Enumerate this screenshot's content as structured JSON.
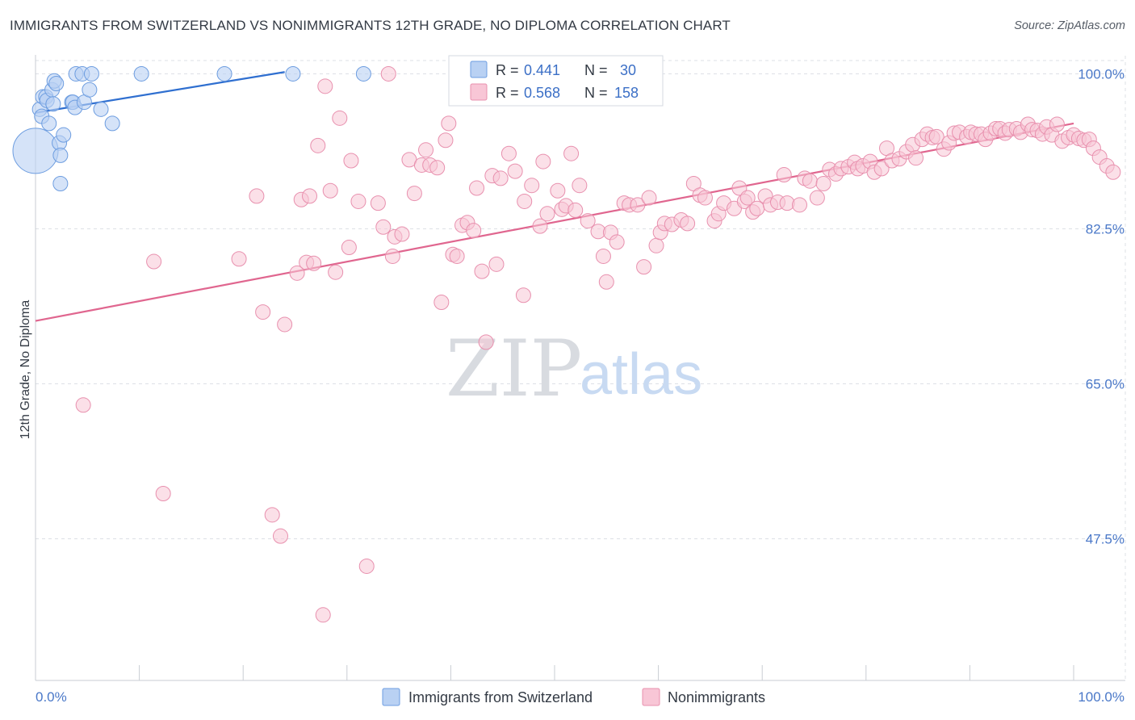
{
  "title": "IMMIGRANTS FROM SWITZERLAND VS NONIMMIGRANTS 12TH GRADE, NO DIPLOMA CORRELATION CHART",
  "source": "Source: ZipAtlas.com",
  "watermark": {
    "zip": "ZIP",
    "atlas": "atlas"
  },
  "colors": {
    "blue_fill": "#b9d1f3",
    "blue_stroke": "#6d9de0",
    "blue_line": "#2f6fd0",
    "pink_fill": "#f8c6d6",
    "pink_stroke": "#e890ae",
    "pink_line": "#e0668f",
    "grid": "#dde0e6",
    "tick_text": "#4a78c8"
  },
  "legend": {
    "rows": [
      {
        "r_label": "R =",
        "r_value": "0.441",
        "n_label": "N =",
        "n_value": "30",
        "series": "blue"
      },
      {
        "r_label": "R =",
        "r_value": "0.568",
        "n_label": "N =",
        "n_value": "158",
        "series": "pink"
      }
    ]
  },
  "chart_data": {
    "type": "scatter",
    "title": "IMMIGRANTS FROM SWITZERLAND VS NONIMMIGRANTS 12TH GRADE, NO DIPLOMA CORRELATION CHART",
    "xlabel": "",
    "ylabel": "12th Grade, No Diploma",
    "xlim": [
      0,
      100
    ],
    "ylim": [
      31.5,
      101.5
    ],
    "x_tick_labels": [
      "0.0%",
      "100.0%"
    ],
    "y_ticks": [
      47.5,
      65.0,
      82.5,
      100.0
    ],
    "y_tick_labels": [
      "47.5%",
      "65.0%",
      "82.5%",
      "100.0%"
    ],
    "grid": true,
    "legend_position": "bottom",
    "series": [
      {
        "name": "Immigrants from Switzerland",
        "color": "blue",
        "trend": {
          "x": [
            0,
            24
          ],
          "y": [
            95.6,
            100.2
          ]
        },
        "points": [
          [
            0.0,
            91.3,
            28
          ],
          [
            0.4,
            96.0,
            9
          ],
          [
            0.6,
            95.2,
            9
          ],
          [
            0.7,
            97.4,
            9
          ],
          [
            1.0,
            97.4,
            9
          ],
          [
            1.1,
            97.0,
            9
          ],
          [
            1.3,
            94.4,
            9
          ],
          [
            1.6,
            98.2,
            9
          ],
          [
            1.7,
            96.6,
            9
          ],
          [
            1.8,
            99.2,
            9
          ],
          [
            2.0,
            98.9,
            9
          ],
          [
            2.3,
            92.2,
            9
          ],
          [
            2.4,
            90.8,
            9
          ],
          [
            2.4,
            87.6,
            9
          ],
          [
            2.7,
            93.1,
            9
          ],
          [
            3.5,
            96.8,
            9
          ],
          [
            3.6,
            96.8,
            9
          ],
          [
            3.8,
            96.2,
            9
          ],
          [
            3.9,
            100.0,
            9
          ],
          [
            4.5,
            100.0,
            9
          ],
          [
            4.7,
            96.8,
            9
          ],
          [
            5.2,
            98.2,
            9
          ],
          [
            5.4,
            100.0,
            9
          ],
          [
            6.3,
            96.0,
            9
          ],
          [
            7.4,
            94.4,
            9
          ],
          [
            10.2,
            100.0,
            9
          ],
          [
            18.2,
            100.0,
            9
          ],
          [
            24.8,
            100.0,
            9
          ],
          [
            31.6,
            100.0,
            9
          ]
        ]
      },
      {
        "name": "Nonimmigrants",
        "color": "pink",
        "trend": {
          "x": [
            0,
            100
          ],
          "y": [
            72.1,
            94.4
          ]
        },
        "points": [
          [
            4.6,
            62.6
          ],
          [
            11.4,
            78.8
          ],
          [
            12.3,
            52.6
          ],
          [
            19.6,
            79.1
          ],
          [
            21.3,
            86.2
          ],
          [
            21.9,
            73.1
          ],
          [
            22.8,
            50.2
          ],
          [
            23.6,
            47.8
          ],
          [
            24.0,
            71.7
          ],
          [
            25.2,
            77.5
          ],
          [
            25.6,
            85.8
          ],
          [
            26.1,
            78.7
          ],
          [
            26.4,
            86.2
          ],
          [
            26.8,
            78.6
          ],
          [
            27.2,
            91.9
          ],
          [
            27.7,
            38.9
          ],
          [
            27.9,
            98.6
          ],
          [
            28.4,
            86.8
          ],
          [
            28.9,
            77.6
          ],
          [
            29.3,
            95.0
          ],
          [
            30.2,
            80.4
          ],
          [
            30.4,
            90.2
          ],
          [
            31.1,
            85.6
          ],
          [
            31.9,
            44.4
          ],
          [
            33.0,
            85.4
          ],
          [
            33.5,
            82.7
          ],
          [
            34.0,
            100.0
          ],
          [
            34.4,
            79.4
          ],
          [
            34.6,
            81.6
          ],
          [
            35.3,
            81.9
          ],
          [
            36.0,
            90.3
          ],
          [
            36.5,
            86.5
          ],
          [
            37.2,
            89.7
          ],
          [
            37.6,
            91.4
          ],
          [
            38.0,
            89.7
          ],
          [
            38.7,
            89.4
          ],
          [
            39.1,
            74.2
          ],
          [
            39.5,
            92.5
          ],
          [
            39.8,
            94.4
          ],
          [
            40.2,
            79.6
          ],
          [
            40.6,
            79.4
          ],
          [
            41.1,
            82.9
          ],
          [
            41.6,
            83.2
          ],
          [
            42.2,
            82.3
          ],
          [
            42.5,
            87.1
          ],
          [
            43.0,
            77.7
          ],
          [
            43.4,
            69.7
          ],
          [
            44.0,
            88.5
          ],
          [
            44.4,
            78.5
          ],
          [
            44.8,
            88.2
          ],
          [
            45.6,
            91.0
          ],
          [
            46.2,
            89.0
          ],
          [
            47.0,
            75.0
          ],
          [
            47.1,
            85.6
          ],
          [
            47.8,
            87.4
          ],
          [
            48.6,
            82.8
          ],
          [
            48.9,
            90.1
          ],
          [
            49.3,
            84.2
          ],
          [
            50.3,
            86.8
          ],
          [
            50.7,
            84.7
          ],
          [
            51.1,
            85.1
          ],
          [
            51.6,
            91.0
          ],
          [
            52.0,
            84.6
          ],
          [
            52.4,
            87.4
          ],
          [
            53.2,
            83.4
          ],
          [
            54.2,
            82.2
          ],
          [
            54.7,
            79.4
          ],
          [
            55.0,
            76.5
          ],
          [
            55.4,
            82.1
          ],
          [
            56.0,
            81.0
          ],
          [
            56.7,
            85.4
          ],
          [
            57.2,
            85.2
          ],
          [
            58.0,
            85.2
          ],
          [
            58.6,
            78.2
          ],
          [
            59.1,
            86.0
          ],
          [
            59.8,
            80.6
          ],
          [
            60.2,
            82.1
          ],
          [
            60.6,
            83.1
          ],
          [
            61.3,
            83.0
          ],
          [
            62.2,
            83.5
          ],
          [
            62.8,
            83.1
          ],
          [
            63.4,
            87.6
          ],
          [
            64.0,
            86.3
          ],
          [
            64.5,
            86.0
          ],
          [
            65.4,
            83.4
          ],
          [
            65.8,
            84.2
          ],
          [
            66.3,
            85.4
          ],
          [
            67.3,
            84.8
          ],
          [
            67.8,
            87.1
          ],
          [
            68.3,
            85.6
          ],
          [
            68.6,
            86.0
          ],
          [
            69.1,
            84.4
          ],
          [
            69.5,
            84.8
          ],
          [
            70.3,
            86.2
          ],
          [
            70.8,
            85.2
          ],
          [
            71.5,
            85.5
          ],
          [
            72.1,
            88.6
          ],
          [
            72.4,
            85.4
          ],
          [
            73.6,
            85.2
          ],
          [
            74.1,
            88.2
          ],
          [
            74.6,
            87.9
          ],
          [
            75.3,
            86.0
          ],
          [
            75.9,
            87.6
          ],
          [
            76.5,
            89.2
          ],
          [
            77.1,
            88.7
          ],
          [
            77.6,
            89.3
          ],
          [
            78.3,
            89.5
          ],
          [
            78.9,
            90.0
          ],
          [
            79.2,
            89.3
          ],
          [
            79.7,
            89.6
          ],
          [
            80.4,
            90.1
          ],
          [
            80.8,
            88.9
          ],
          [
            81.5,
            89.3
          ],
          [
            82.0,
            91.6
          ],
          [
            82.5,
            90.2
          ],
          [
            83.2,
            90.4
          ],
          [
            83.9,
            91.2
          ],
          [
            84.5,
            92.0
          ],
          [
            84.8,
            90.5
          ],
          [
            85.4,
            92.6
          ],
          [
            85.9,
            93.2
          ],
          [
            86.4,
            92.8
          ],
          [
            86.8,
            92.9
          ],
          [
            87.5,
            91.5
          ],
          [
            88.0,
            92.2
          ],
          [
            88.5,
            93.3
          ],
          [
            89.0,
            93.4
          ],
          [
            89.7,
            92.9
          ],
          [
            90.1,
            93.4
          ],
          [
            90.6,
            93.2
          ],
          [
            91.1,
            93.2
          ],
          [
            91.5,
            92.6
          ],
          [
            92.0,
            93.3
          ],
          [
            92.5,
            93.8
          ],
          [
            92.9,
            93.8
          ],
          [
            93.4,
            93.3
          ],
          [
            93.8,
            93.7
          ],
          [
            94.5,
            93.8
          ],
          [
            94.9,
            93.4
          ],
          [
            95.6,
            94.3
          ],
          [
            96.0,
            93.7
          ],
          [
            96.5,
            93.6
          ],
          [
            97.0,
            93.2
          ],
          [
            97.4,
            94.0
          ],
          [
            97.9,
            93.1
          ],
          [
            98.4,
            94.3
          ],
          [
            98.9,
            92.4
          ],
          [
            99.5,
            92.8
          ],
          [
            100.0,
            93.1
          ],
          [
            100.5,
            92.7
          ],
          [
            101.0,
            92.5
          ],
          [
            101.5,
            92.6
          ],
          [
            101.9,
            91.6
          ],
          [
            102.5,
            90.6
          ],
          [
            103.2,
            89.6
          ],
          [
            103.8,
            88.9
          ]
        ]
      }
    ]
  }
}
